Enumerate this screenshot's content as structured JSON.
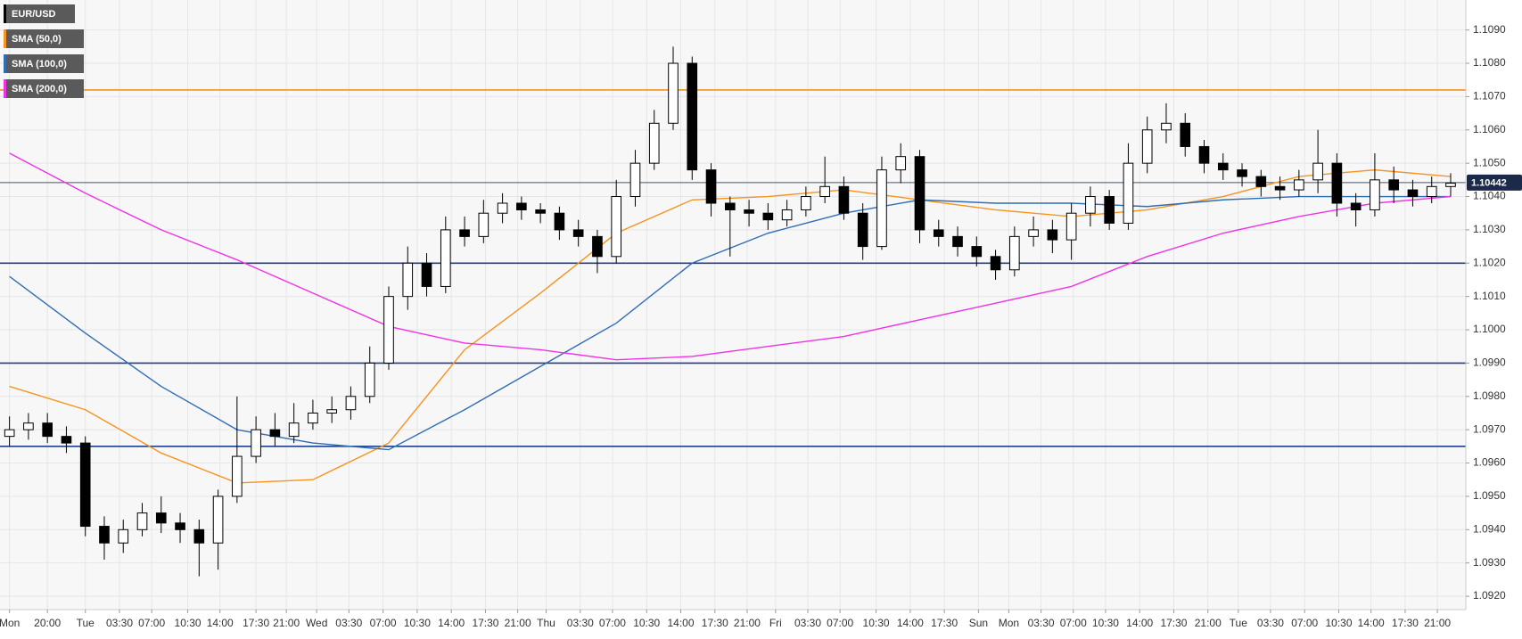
{
  "chart_data": {
    "type": "candlestick",
    "grid": true,
    "ylim": [
      1.0916,
      1.1099
    ],
    "yticks": [
      {
        "value": 1.092,
        "label": "1.0920"
      },
      {
        "value": 1.093,
        "label": "1.0930"
      },
      {
        "value": 1.094,
        "label": "1.0940"
      },
      {
        "value": 1.095,
        "label": "1.0950"
      },
      {
        "value": 1.096,
        "label": "1.0960"
      },
      {
        "value": 1.097,
        "label": "1.0970"
      },
      {
        "value": 1.098,
        "label": "1.0980"
      },
      {
        "value": 1.099,
        "label": "1.0990"
      },
      {
        "value": 1.1,
        "label": "1.1000"
      },
      {
        "value": 1.101,
        "label": "1.1010"
      },
      {
        "value": 1.102,
        "label": "1.1020"
      },
      {
        "value": 1.103,
        "label": "1.1030"
      },
      {
        "value": 1.104,
        "label": "1.1040"
      },
      {
        "value": 1.105,
        "label": "1.1050"
      },
      {
        "value": 1.106,
        "label": "1.1060"
      },
      {
        "value": 1.107,
        "label": "1.1070"
      },
      {
        "value": 1.108,
        "label": "1.1080"
      },
      {
        "value": 1.109,
        "label": "1.1090"
      }
    ],
    "xlim": [
      -0.5,
      76.8
    ],
    "xticks": [
      {
        "value": 0,
        "label": "Mon"
      },
      {
        "value": 2,
        "label": "20:00"
      },
      {
        "value": 4,
        "label": "Tue"
      },
      {
        "value": 5.8,
        "label": "03:30"
      },
      {
        "value": 7.5,
        "label": "07:00"
      },
      {
        "value": 9.4,
        "label": "10:30"
      },
      {
        "value": 11.1,
        "label": "14:00"
      },
      {
        "value": 13,
        "label": "17:30"
      },
      {
        "value": 14.6,
        "label": "21:00"
      },
      {
        "value": 16.2,
        "label": "Wed"
      },
      {
        "value": 17.9,
        "label": "03:30"
      },
      {
        "value": 19.7,
        "label": "07:00"
      },
      {
        "value": 21.5,
        "label": "10:30"
      },
      {
        "value": 23.3,
        "label": "14:00"
      },
      {
        "value": 25.1,
        "label": "17:30"
      },
      {
        "value": 26.8,
        "label": "21:00"
      },
      {
        "value": 28.3,
        "label": "Thu"
      },
      {
        "value": 30.1,
        "label": "03:30"
      },
      {
        "value": 31.8,
        "label": "07:00"
      },
      {
        "value": 33.6,
        "label": "10:30"
      },
      {
        "value": 35.4,
        "label": "14:00"
      },
      {
        "value": 37.2,
        "label": "17:30"
      },
      {
        "value": 38.9,
        "label": "21:00"
      },
      {
        "value": 40.4,
        "label": "Fri"
      },
      {
        "value": 42.1,
        "label": "03:30"
      },
      {
        "value": 43.8,
        "label": "07:00"
      },
      {
        "value": 45.7,
        "label": "10:30"
      },
      {
        "value": 47.5,
        "label": "14:00"
      },
      {
        "value": 49.3,
        "label": "17:30"
      },
      {
        "value": 51.1,
        "label": "Sun"
      },
      {
        "value": 52.7,
        "label": "Mon"
      },
      {
        "value": 54.4,
        "label": "03:30"
      },
      {
        "value": 56.1,
        "label": "07:00"
      },
      {
        "value": 57.8,
        "label": "10:30"
      },
      {
        "value": 59.6,
        "label": "14:00"
      },
      {
        "value": 61.4,
        "label": "17:30"
      },
      {
        "value": 63.2,
        "label": "21:00"
      },
      {
        "value": 64.8,
        "label": "Tue"
      },
      {
        "value": 66.5,
        "label": "03:30"
      },
      {
        "value": 68.3,
        "label": "07:00"
      },
      {
        "value": 70.1,
        "label": "10:30"
      },
      {
        "value": 71.8,
        "label": "14:00"
      },
      {
        "value": 73.6,
        "label": "17:30"
      },
      {
        "value": 75.3,
        "label": "21:00"
      }
    ],
    "candles": {
      "name": "EUR/USD",
      "color": "#000000",
      "up_color": "#ffffff",
      "down_color": "#000000",
      "open": [
        1.0968,
        1.097,
        1.0972,
        1.0968,
        1.0966,
        1.0941,
        1.0936,
        1.094,
        1.0945,
        1.0942,
        1.094,
        1.0936,
        1.095,
        1.0962,
        1.097,
        1.0968,
        1.0972,
        1.0975,
        1.0976,
        1.098,
        1.099,
        1.101,
        1.102,
        1.1013,
        1.103,
        1.1028,
        1.1035,
        1.1038,
        1.1036,
        1.1035,
        1.103,
        1.1028,
        1.1022,
        1.104,
        1.105,
        1.1062,
        1.108,
        1.1048,
        1.1038,
        1.1036,
        1.1035,
        1.1033,
        1.1036,
        1.104,
        1.1043,
        1.1035,
        1.1025,
        1.1048,
        1.1052,
        1.103,
        1.1028,
        1.1025,
        1.1022,
        1.1018,
        1.1028,
        1.103,
        1.1027,
        1.1035,
        1.104,
        1.1032,
        1.105,
        1.106,
        1.1062,
        1.1055,
        1.105,
        1.1048,
        1.1046,
        1.1043,
        1.1042,
        1.1045,
        1.105,
        1.1038,
        1.1036,
        1.1045,
        1.1042,
        1.104,
        1.1043
      ],
      "high": [
        1.0974,
        1.0975,
        1.0975,
        1.0971,
        1.0968,
        1.0944,
        1.0943,
        1.0948,
        1.095,
        1.0945,
        1.0943,
        1.0952,
        1.098,
        1.0974,
        1.0975,
        1.0978,
        1.0979,
        1.098,
        1.0983,
        1.0995,
        1.1013,
        1.1025,
        1.1023,
        1.1034,
        1.1034,
        1.1039,
        1.1041,
        1.104,
        1.1038,
        1.1037,
        1.1033,
        1.103,
        1.1045,
        1.1054,
        1.1066,
        1.1085,
        1.1082,
        1.105,
        1.104,
        1.1039,
        1.1038,
        1.1039,
        1.1043,
        1.1052,
        1.1046,
        1.1038,
        1.1052,
        1.1056,
        1.1054,
        1.1033,
        1.1031,
        1.1028,
        1.1024,
        1.1031,
        1.1034,
        1.1033,
        1.1038,
        1.1043,
        1.1042,
        1.1056,
        1.1064,
        1.1068,
        1.1065,
        1.1057,
        1.1053,
        1.105,
        1.1048,
        1.1046,
        1.1048,
        1.106,
        1.1053,
        1.1041,
        1.1053,
        1.1049,
        1.1045,
        1.1046,
        1.1047
      ],
      "low": [
        1.0965,
        1.0967,
        1.0966,
        1.0963,
        1.0938,
        1.0931,
        1.0933,
        1.0938,
        1.0939,
        1.0936,
        1.0926,
        1.0928,
        1.0948,
        1.096,
        1.0965,
        1.0966,
        1.097,
        1.0972,
        1.0973,
        1.0978,
        1.0988,
        1.1006,
        1.101,
        1.1011,
        1.1025,
        1.1026,
        1.1032,
        1.1033,
        1.1032,
        1.1027,
        1.1025,
        1.1017,
        1.102,
        1.1037,
        1.1048,
        1.106,
        1.1045,
        1.1034,
        1.1022,
        1.1031,
        1.103,
        1.1031,
        1.1034,
        1.1038,
        1.1033,
        1.1021,
        1.1024,
        1.1044,
        1.1026,
        1.1025,
        1.1022,
        1.1019,
        1.1015,
        1.1016,
        1.1025,
        1.1023,
        1.1021,
        1.1031,
        1.103,
        1.103,
        1.1047,
        1.1056,
        1.1052,
        1.1047,
        1.1045,
        1.1043,
        1.104,
        1.1039,
        1.104,
        1.1041,
        1.1034,
        1.1031,
        1.1034,
        1.1038,
        1.1037,
        1.1038,
        1.104
      ],
      "close": [
        1.097,
        1.0972,
        1.0968,
        1.0966,
        1.0941,
        1.0936,
        1.094,
        1.0945,
        1.0942,
        1.094,
        1.0936,
        1.095,
        1.0962,
        1.097,
        1.0968,
        1.0972,
        1.0975,
        1.0976,
        1.098,
        1.099,
        1.101,
        1.102,
        1.1013,
        1.103,
        1.1028,
        1.1035,
        1.1038,
        1.1036,
        1.1035,
        1.103,
        1.1028,
        1.1022,
        1.104,
        1.105,
        1.1062,
        1.108,
        1.1048,
        1.1038,
        1.1036,
        1.1035,
        1.1033,
        1.1036,
        1.104,
        1.1043,
        1.1035,
        1.1025,
        1.1048,
        1.1052,
        1.103,
        1.1028,
        1.1025,
        1.1022,
        1.1018,
        1.1028,
        1.103,
        1.1027,
        1.1035,
        1.104,
        1.1032,
        1.105,
        1.106,
        1.1062,
        1.1055,
        1.105,
        1.1048,
        1.1046,
        1.1043,
        1.1042,
        1.1045,
        1.105,
        1.1038,
        1.1036,
        1.1045,
        1.1042,
        1.104,
        1.1043,
        1.1044
      ]
    },
    "series": [
      {
        "name": "SMA (50,0)",
        "color": "#f7931e",
        "x": [
          0,
          4,
          8,
          12,
          16,
          20,
          24,
          28,
          32,
          36,
          40,
          44,
          48,
          52,
          56,
          60,
          64,
          68,
          72,
          76
        ],
        "values": [
          1.0983,
          1.0976,
          1.0963,
          1.0954,
          1.0955,
          1.0966,
          1.0994,
          1.1011,
          1.1029,
          1.1039,
          1.104,
          1.1042,
          1.1039,
          1.1036,
          1.1034,
          1.1036,
          1.104,
          1.1046,
          1.1048,
          1.1046
        ]
      },
      {
        "name": "SMA (100,0)",
        "color": "#2f6db5",
        "x": [
          0,
          4,
          8,
          12,
          16,
          20,
          24,
          28,
          32,
          36,
          40,
          44,
          48,
          52,
          56,
          60,
          64,
          68,
          72,
          76
        ],
        "values": [
          1.1016,
          1.0999,
          1.0983,
          1.097,
          1.0966,
          1.0964,
          1.0976,
          1.0989,
          1.1002,
          1.102,
          1.1029,
          1.1035,
          1.1039,
          1.1038,
          1.1038,
          1.1037,
          1.1039,
          1.104,
          1.104,
          1.104
        ]
      },
      {
        "name": "SMA (200,0)",
        "color": "#f032e6",
        "x": [
          0,
          4,
          8,
          12,
          16,
          20,
          24,
          28,
          32,
          36,
          40,
          44,
          48,
          52,
          56,
          60,
          64,
          68,
          72,
          76
        ],
        "values": [
          1.1053,
          1.1041,
          1.103,
          1.1021,
          1.1011,
          1.1001,
          1.0996,
          1.0994,
          1.0991,
          1.0992,
          1.0995,
          1.0998,
          1.1003,
          1.1008,
          1.1013,
          1.1022,
          1.1029,
          1.1034,
          1.1038,
          1.104
        ]
      }
    ],
    "hlines": [
      {
        "value": 1.1072,
        "color": "#f7931e"
      },
      {
        "value": 1.102,
        "color": "#1f3f8f"
      },
      {
        "value": 1.099,
        "color": "#1f3f8f"
      },
      {
        "value": 1.0965,
        "color": "#1f3f8f"
      }
    ],
    "last_price": 1.10442
  }
}
